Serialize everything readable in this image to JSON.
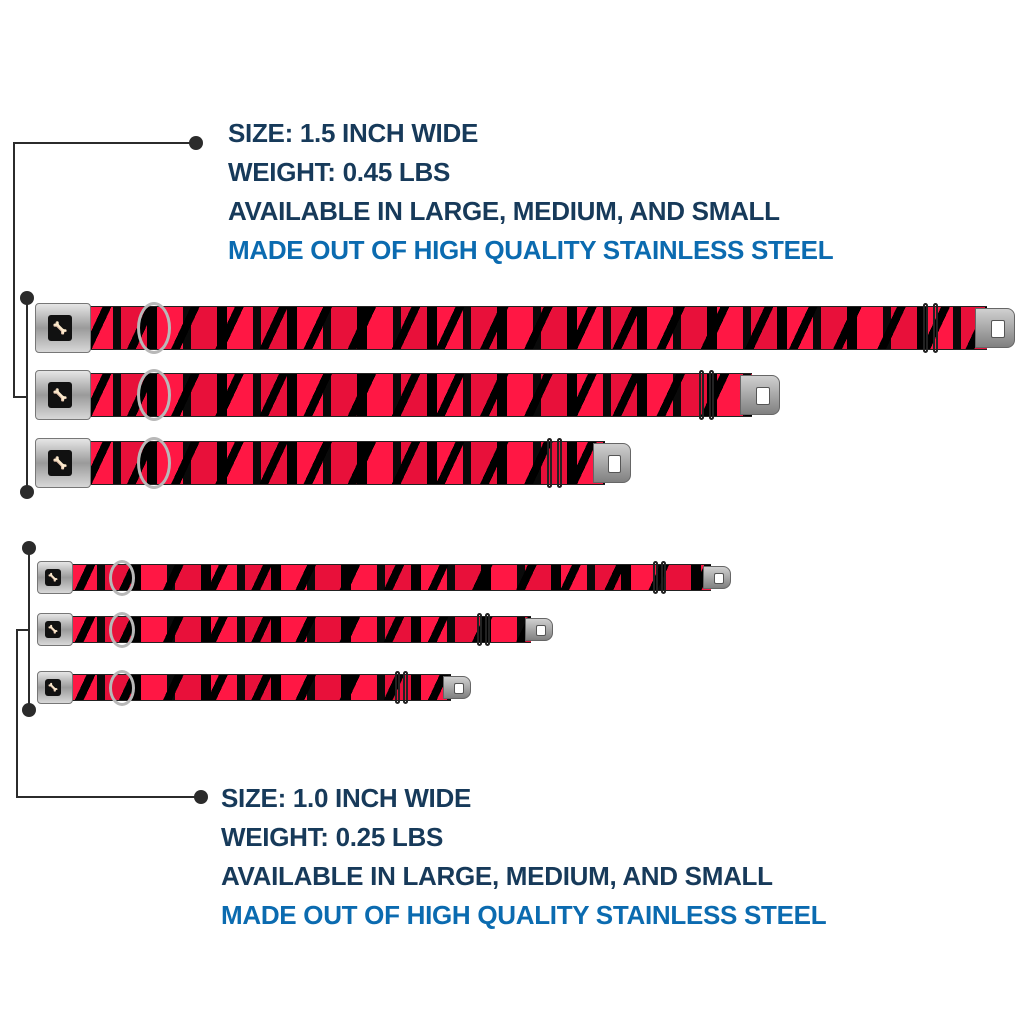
{
  "wide_collar": {
    "lines": [
      "SIZE: 1.5 INCH WIDE",
      "WEIGHT: 0.45 LBS",
      "AVAILABLE IN LARGE, MEDIUM, AND SMALL"
    ],
    "highlight": "MADE OUT OF HIGH QUALITY STAINLESS STEEL",
    "sizes": [
      "Large",
      "Medium",
      "Small"
    ]
  },
  "narrow_collar": {
    "lines": [
      "SIZE: 1.0 INCH WIDE",
      "WEIGHT: 0.25 LBS",
      "AVAILABLE IN LARGE, MEDIUM, AND SMALL"
    ],
    "highlight": "MADE OUT OF HIGH QUALITY STAINLESS STEEL",
    "sizes": [
      "Large",
      "Medium",
      "Small"
    ]
  },
  "colors": {
    "text_dark": "#173a5a",
    "text_blue": "#0b6bb0",
    "collar_red": "#ff1744",
    "collar_black": "#000000"
  },
  "icons": {
    "buckle_logo": "bone-icon"
  }
}
